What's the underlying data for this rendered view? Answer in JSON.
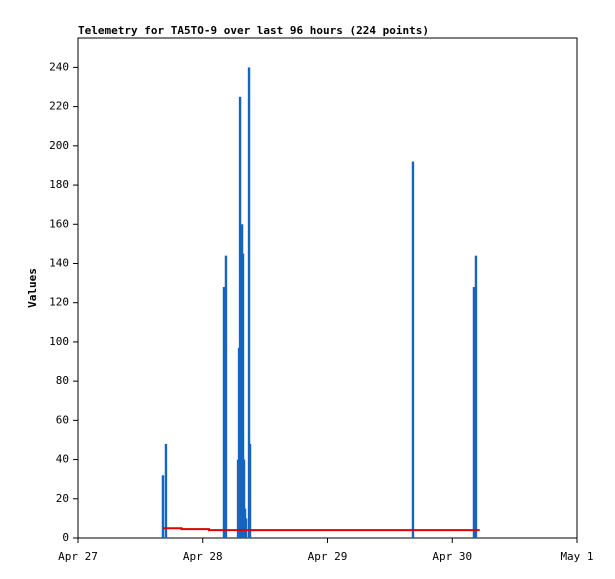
{
  "chart_data": {
    "type": "bar",
    "title": "Telemetry for TA5TO-9 over last 96 hours (224 points)",
    "ylabel": "Values",
    "xlim": [
      0,
      4
    ],
    "xticks": [
      {
        "value": 0,
        "label": "Apr 27"
      },
      {
        "value": 1,
        "label": "Apr 28"
      },
      {
        "value": 2,
        "label": "Apr 29"
      },
      {
        "value": 3,
        "label": "Apr 30"
      },
      {
        "value": 4,
        "label": "May 1"
      }
    ],
    "ylim": [
      0,
      255
    ],
    "yticks": [
      0,
      20,
      40,
      60,
      80,
      100,
      120,
      140,
      160,
      180,
      200,
      220,
      240
    ],
    "series": [
      {
        "type": "bar",
        "color": "#1565c0",
        "x": [
          0.681,
          0.705,
          1.17,
          1.186,
          1.283,
          1.291,
          1.299,
          1.307,
          1.315,
          1.323,
          1.331,
          1.339,
          1.347,
          1.371,
          1.379,
          2.685,
          3.174,
          3.19
        ],
        "values": [
          32,
          48,
          128,
          144,
          40,
          97,
          225,
          145,
          160,
          145,
          40,
          15,
          10,
          240,
          48,
          192,
          128,
          144
        ]
      },
      {
        "type": "line",
        "color": "#e00000",
        "x": [
          0.681,
          0.83,
          0.83,
          1.05,
          1.05,
          3.22
        ],
        "values": [
          5,
          5,
          4.5,
          4.5,
          4,
          4
        ]
      }
    ]
  }
}
